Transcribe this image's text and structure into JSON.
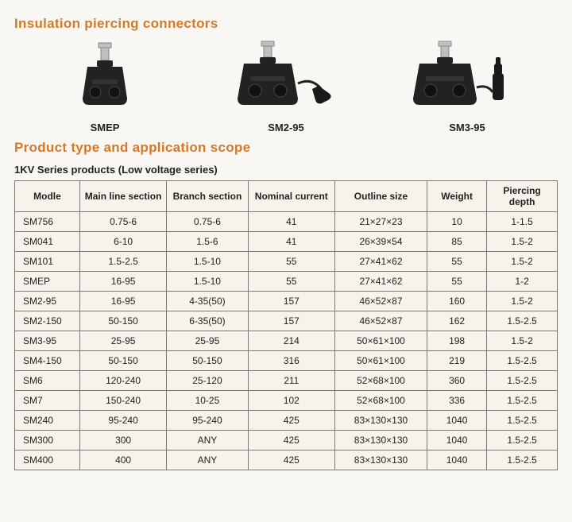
{
  "titles": {
    "section1": "Insulation piercing connectors",
    "section2": "Product type and application scope",
    "subheading": "1KV Series products (Low voltage series)"
  },
  "products": [
    {
      "label": "SMEP"
    },
    {
      "label": "SM2-95"
    },
    {
      "label": "SM3-95"
    }
  ],
  "colors": {
    "heading": "#d37a2a",
    "border": "#7a7a7a",
    "tablebg": "#f8f3ea",
    "bodybg": "#f9f7f4",
    "connector_body": "#222222",
    "connector_metal": "#bfbfbf",
    "connector_metal_dark": "#8a8a8a"
  },
  "table": {
    "columns": [
      "Modle",
      "Main line section",
      "Branch section",
      "Nominal current",
      "Outline size",
      "Weight",
      "Piercing depth"
    ],
    "rows": [
      [
        "SM756",
        "0.75-6",
        "0.75-6",
        "41",
        "21×27×23",
        "10",
        "1-1.5"
      ],
      [
        "SM041",
        "6-10",
        "1.5-6",
        "41",
        "26×39×54",
        "85",
        "1.5-2"
      ],
      [
        "SM101",
        "1.5-2.5",
        "1.5-10",
        "55",
        "27×41×62",
        "55",
        "1.5-2"
      ],
      [
        "SMEP",
        "16-95",
        "1.5-10",
        "55",
        "27×41×62",
        "55",
        "1-2"
      ],
      [
        "SM2-95",
        "16-95",
        "4-35(50)",
        "157",
        "46×52×87",
        "160",
        "1.5-2"
      ],
      [
        "SM2-150",
        "50-150",
        "6-35(50)",
        "157",
        "46×52×87",
        "162",
        "1.5-2.5"
      ],
      [
        "SM3-95",
        "25-95",
        "25-95",
        "214",
        "50×61×100",
        "198",
        "1.5-2"
      ],
      [
        "SM4-150",
        "50-150",
        "50-150",
        "316",
        "50×61×100",
        "219",
        "1.5-2.5"
      ],
      [
        "SM6",
        "120-240",
        "25-120",
        "211",
        "52×68×100",
        "360",
        "1.5-2.5"
      ],
      [
        "SM7",
        "150-240",
        "10-25",
        "102",
        "52×68×100",
        "336",
        "1.5-2.5"
      ],
      [
        "SM240",
        "95-240",
        "95-240",
        "425",
        "83×130×130",
        "1040",
        "1.5-2.5"
      ],
      [
        "SM300",
        "300",
        "ANY",
        "425",
        "83×130×130",
        "1040",
        "1.5-2.5"
      ],
      [
        "SM400",
        "400",
        "ANY",
        "425",
        "83×130×130",
        "1040",
        "1.5-2.5"
      ]
    ]
  }
}
